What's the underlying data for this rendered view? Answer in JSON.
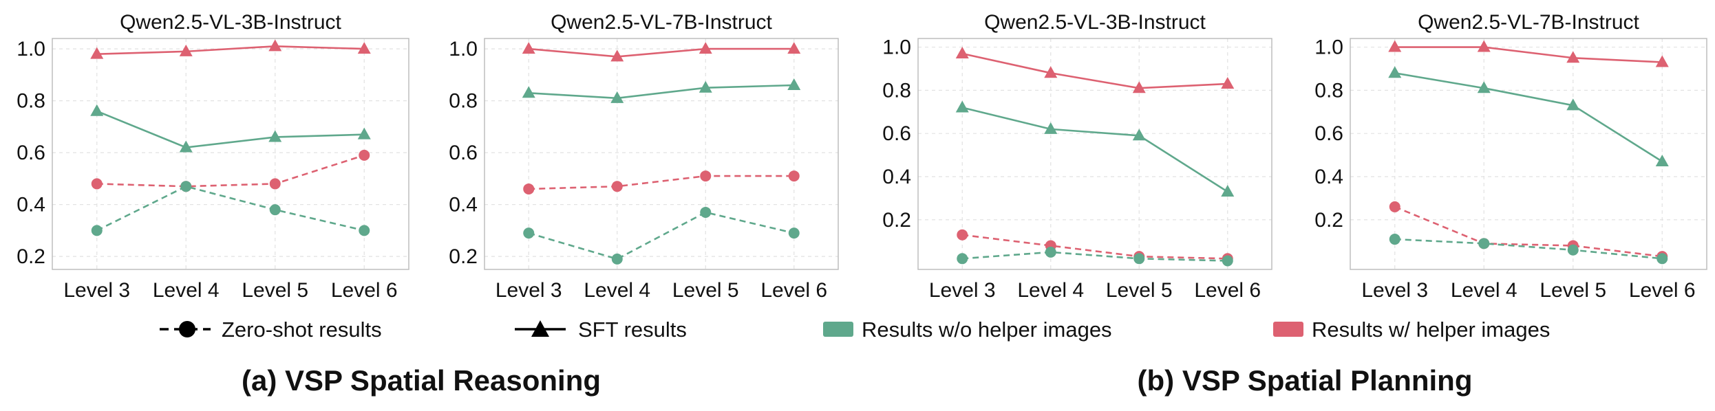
{
  "colors": {
    "without_helper": "#5fa88c",
    "with_helper": "#dd6171"
  },
  "legend": {
    "zero_shot": "Zero-shot results",
    "sft": "SFT results",
    "without_helper": "Results w/o helper images",
    "with_helper": "Results w/ helper images"
  },
  "captions": {
    "reasoning": "(a) VSP Spatial Reasoning",
    "planning": "(b) VSP Spatial Planning"
  },
  "chart_data": [
    {
      "type": "line",
      "group": "reasoning",
      "title": "Qwen2.5-VL-3B-Instruct",
      "categories": [
        "Level 3",
        "Level 4",
        "Level 5",
        "Level 6"
      ],
      "yticks": [
        0.2,
        0.4,
        0.6,
        0.8,
        1.0
      ],
      "ylim": [
        0.15,
        1.04
      ],
      "grid": true,
      "series": [
        {
          "style": "sft",
          "helper": "with",
          "values": [
            0.98,
            0.99,
            1.01,
            1.0
          ]
        },
        {
          "style": "sft",
          "helper": "without",
          "values": [
            0.76,
            0.62,
            0.66,
            0.67
          ]
        },
        {
          "style": "zero_shot",
          "helper": "with",
          "values": [
            0.48,
            0.47,
            0.48,
            0.59
          ]
        },
        {
          "style": "zero_shot",
          "helper": "without",
          "values": [
            0.3,
            0.47,
            0.38,
            0.3
          ]
        }
      ]
    },
    {
      "type": "line",
      "group": "reasoning",
      "title": "Qwen2.5-VL-7B-Instruct",
      "categories": [
        "Level 3",
        "Level 4",
        "Level 5",
        "Level 6"
      ],
      "yticks": [
        0.2,
        0.4,
        0.6,
        0.8,
        1.0
      ],
      "ylim": [
        0.15,
        1.04
      ],
      "grid": true,
      "series": [
        {
          "style": "sft",
          "helper": "with",
          "values": [
            1.0,
            0.97,
            1.0,
            1.0
          ]
        },
        {
          "style": "sft",
          "helper": "without",
          "values": [
            0.83,
            0.81,
            0.85,
            0.86
          ]
        },
        {
          "style": "zero_shot",
          "helper": "with",
          "values": [
            0.46,
            0.47,
            0.51,
            0.51
          ]
        },
        {
          "style": "zero_shot",
          "helper": "without",
          "values": [
            0.29,
            0.19,
            0.37,
            0.29
          ]
        }
      ]
    },
    {
      "type": "line",
      "group": "planning",
      "title": "Qwen2.5-VL-3B-Instruct",
      "categories": [
        "Level 3",
        "Level 4",
        "Level 5",
        "Level 6"
      ],
      "yticks": [
        0.2,
        0.4,
        0.6,
        0.8,
        1.0
      ],
      "ylim": [
        -0.03,
        1.04
      ],
      "grid": true,
      "series": [
        {
          "style": "sft",
          "helper": "with",
          "values": [
            0.97,
            0.88,
            0.81,
            0.83
          ]
        },
        {
          "style": "sft",
          "helper": "without",
          "values": [
            0.72,
            0.62,
            0.59,
            0.33
          ]
        },
        {
          "style": "zero_shot",
          "helper": "with",
          "values": [
            0.13,
            0.08,
            0.03,
            0.02
          ]
        },
        {
          "style": "zero_shot",
          "helper": "without",
          "values": [
            0.02,
            0.05,
            0.02,
            0.01
          ]
        }
      ]
    },
    {
      "type": "line",
      "group": "planning",
      "title": "Qwen2.5-VL-7B-Instruct",
      "categories": [
        "Level 3",
        "Level 4",
        "Level 5",
        "Level 6"
      ],
      "yticks": [
        0.2,
        0.4,
        0.6,
        0.8,
        1.0
      ],
      "ylim": [
        -0.03,
        1.04
      ],
      "grid": true,
      "series": [
        {
          "style": "sft",
          "helper": "with",
          "values": [
            1.0,
            1.0,
            0.95,
            0.93
          ]
        },
        {
          "style": "sft",
          "helper": "without",
          "values": [
            0.88,
            0.81,
            0.73,
            0.47
          ]
        },
        {
          "style": "zero_shot",
          "helper": "with",
          "values": [
            0.26,
            0.09,
            0.08,
            0.03
          ]
        },
        {
          "style": "zero_shot",
          "helper": "without",
          "values": [
            0.11,
            0.09,
            0.06,
            0.02
          ]
        }
      ]
    }
  ]
}
